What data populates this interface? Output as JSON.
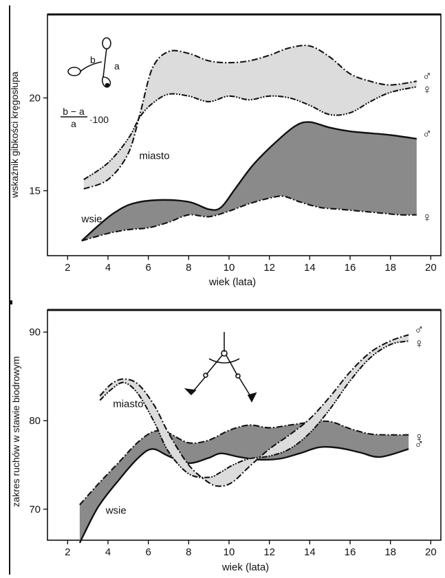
{
  "chart_data": [
    {
      "type": "area",
      "xlabel": "wiek (lata)",
      "ylabel": "wskaźnik gibkości kręgosłupa",
      "xlim": [
        1,
        20.5
      ],
      "ylim": [
        11.5,
        24.5
      ],
      "x_ticks": [
        2,
        4,
        6,
        8,
        10,
        12,
        14,
        16,
        18,
        20
      ],
      "y_ticks": [
        15,
        20
      ],
      "grid": false,
      "formula": {
        "left": "b − a",
        "denominator": "a",
        "right": "·100"
      },
      "figure_labels": [
        "b",
        "a"
      ],
      "group_labels": [
        {
          "text": "miasto",
          "x": 6.3,
          "y": 16.7
        },
        {
          "text": "wsie",
          "x": 3.2,
          "y": 13.3
        }
      ],
      "bands": [
        {
          "group": "miasto",
          "fill": "#dcdcdc",
          "boys": {
            "symbol": "♂",
            "style": "dash-dot",
            "points": [
              [
                2.8,
                15.1
              ],
              [
                4,
                15.6
              ],
              [
                5,
                17.0
              ],
              [
                5.6,
                19.2
              ],
              [
                6.2,
                21.6
              ],
              [
                7,
                22.5
              ],
              [
                8,
                22.4
              ],
              [
                9,
                22.0
              ],
              [
                10,
                21.9
              ],
              [
                11,
                22.0
              ],
              [
                12,
                22.3
              ],
              [
                13,
                22.7
              ],
              [
                14,
                22.8
              ],
              [
                15,
                22.2
              ],
              [
                16,
                21.3
              ],
              [
                17,
                20.9
              ],
              [
                18,
                20.7
              ],
              [
                19.3,
                20.9
              ]
            ]
          },
          "girls": {
            "symbol": "♀",
            "style": "dash-dot-dot",
            "points": [
              [
                2.8,
                15.6
              ],
              [
                4,
                16.5
              ],
              [
                5,
                17.8
              ],
              [
                5.6,
                19.0
              ],
              [
                6.2,
                19.7
              ],
              [
                7,
                20.2
              ],
              [
                8,
                20.1
              ],
              [
                9,
                19.8
              ],
              [
                10,
                20.1
              ],
              [
                11,
                19.9
              ],
              [
                12,
                20.1
              ],
              [
                13,
                20.0
              ],
              [
                14,
                19.6
              ],
              [
                15,
                19.1
              ],
              [
                16,
                19.2
              ],
              [
                17,
                19.8
              ],
              [
                18,
                20.3
              ],
              [
                19.3,
                20.6
              ]
            ]
          }
        },
        {
          "group": "wsie",
          "fill": "#8a8a8a",
          "boys": {
            "symbol": "♂",
            "style": "solid",
            "points": [
              [
                2.7,
                12.3
              ],
              [
                3.5,
                13.1
              ],
              [
                4.3,
                13.8
              ],
              [
                5.2,
                14.3
              ],
              [
                6.5,
                14.5
              ],
              [
                8,
                14.4
              ],
              [
                9,
                14.0
              ],
              [
                9.6,
                14.1
              ],
              [
                10.3,
                15.1
              ],
              [
                11.2,
                16.4
              ],
              [
                12.3,
                17.6
              ],
              [
                13.3,
                18.5
              ],
              [
                14,
                18.7
              ],
              [
                15,
                18.4
              ],
              [
                16,
                18.2
              ],
              [
                17,
                18.1
              ],
              [
                18,
                18.0
              ],
              [
                19.3,
                17.8
              ]
            ]
          },
          "girls": {
            "symbol": "♀",
            "style": "dash-dot",
            "points": [
              [
                2.7,
                12.3
              ],
              [
                4,
                12.7
              ],
              [
                5,
                12.9
              ],
              [
                6,
                13.0
              ],
              [
                7,
                13.3
              ],
              [
                8,
                13.7
              ],
              [
                9,
                13.6
              ],
              [
                10,
                13.9
              ],
              [
                11,
                14.3
              ],
              [
                12,
                14.6
              ],
              [
                12.7,
                14.7
              ],
              [
                13.5,
                14.4
              ],
              [
                14.5,
                14.1
              ],
              [
                15.5,
                14.0
              ],
              [
                16.5,
                13.9
              ],
              [
                17.5,
                13.8
              ],
              [
                18.5,
                13.7
              ],
              [
                19.3,
                13.7
              ]
            ]
          }
        }
      ]
    },
    {
      "type": "area",
      "xlabel": "wiek (lata)",
      "ylabel": "zakres ruchów w stawie biodrowym",
      "xlim": [
        1,
        20.5
      ],
      "ylim": [
        66.5,
        92.5
      ],
      "x_ticks": [
        2,
        4,
        6,
        8,
        10,
        12,
        14,
        16,
        18,
        20
      ],
      "y_ticks": [
        70,
        80,
        90
      ],
      "grid": false,
      "group_labels": [
        {
          "text": "miasto",
          "x": 5.0,
          "y": 81.5
        },
        {
          "text": "wsie",
          "x": 4.4,
          "y": 69.5
        }
      ],
      "bands": [
        {
          "group": "wsie",
          "fill": "#8a8a8a",
          "boys": {
            "symbol": "♂",
            "style": "solid",
            "points": [
              [
                2.6,
                66.2
              ],
              [
                3.5,
                70.2
              ],
              [
                4.5,
                73.2
              ],
              [
                5.5,
                75.8
              ],
              [
                6.2,
                76.8
              ],
              [
                7,
                76.0
              ],
              [
                8,
                75.2
              ],
              [
                9,
                75.8
              ],
              [
                9.6,
                76.3
              ],
              [
                10.5,
                75.9
              ],
              [
                11.5,
                75.6
              ],
              [
                12.5,
                75.7
              ],
              [
                13.5,
                76.3
              ],
              [
                14.5,
                77.0
              ],
              [
                15.5,
                76.9
              ],
              [
                16.5,
                76.4
              ],
              [
                17.5,
                75.9
              ],
              [
                18.9,
                76.8
              ]
            ]
          },
          "girls": {
            "symbol": "♀",
            "style": "dash-dot",
            "points": [
              [
                2.6,
                70.5
              ],
              [
                3.5,
                72.8
              ],
              [
                4.5,
                75.2
              ],
              [
                5.5,
                77.6
              ],
              [
                6.3,
                78.8
              ],
              [
                7,
                78.6
              ],
              [
                8,
                77.5
              ],
              [
                9,
                77.8
              ],
              [
                10,
                78.9
              ],
              [
                11,
                79.5
              ],
              [
                12,
                79.2
              ],
              [
                13,
                79.5
              ],
              [
                14,
                79.8
              ],
              [
                15,
                79.9
              ],
              [
                16,
                79.1
              ],
              [
                17,
                78.5
              ],
              [
                18,
                78.4
              ],
              [
                18.9,
                78.4
              ]
            ]
          }
        },
        {
          "group": "miasto",
          "fill": "#dcdcdc",
          "boys": {
            "symbol": "♂",
            "style": "dash-dot",
            "points": [
              [
                3.6,
                82.8
              ],
              [
                4.2,
                84.2
              ],
              [
                4.8,
                84.7
              ],
              [
                5.5,
                84.1
              ],
              [
                6.3,
                81.7
              ],
              [
                7,
                78.6
              ],
              [
                8,
                75.0
              ],
              [
                9,
                73.0
              ],
              [
                9.6,
                72.6
              ],
              [
                10.2,
                73.1
              ],
              [
                11,
                74.8
              ],
              [
                12,
                76.8
              ],
              [
                13,
                78.4
              ],
              [
                14,
                80.2
              ],
              [
                15,
                82.7
              ],
              [
                16,
                85.5
              ],
              [
                17,
                87.7
              ],
              [
                18,
                89.0
              ],
              [
                18.9,
                89.7
              ]
            ]
          },
          "girls": {
            "symbol": "♀",
            "style": "dash-dot-dot",
            "points": [
              [
                3.6,
                82.3
              ],
              [
                4.2,
                83.6
              ],
              [
                4.8,
                84.3
              ],
              [
                5.5,
                83.0
              ],
              [
                6.3,
                79.8
              ],
              [
                7,
                76.5
              ],
              [
                8,
                74.0
              ],
              [
                9,
                73.6
              ],
              [
                9.6,
                74.2
              ],
              [
                10.2,
                75.0
              ],
              [
                11,
                75.7
              ],
              [
                12,
                76.0
              ],
              [
                13,
                76.8
              ],
              [
                14,
                78.6
              ],
              [
                15,
                81.3
              ],
              [
                16,
                84.5
              ],
              [
                17,
                87.1
              ],
              [
                18,
                88.6
              ],
              [
                18.9,
                89.0
              ]
            ]
          }
        }
      ]
    }
  ]
}
